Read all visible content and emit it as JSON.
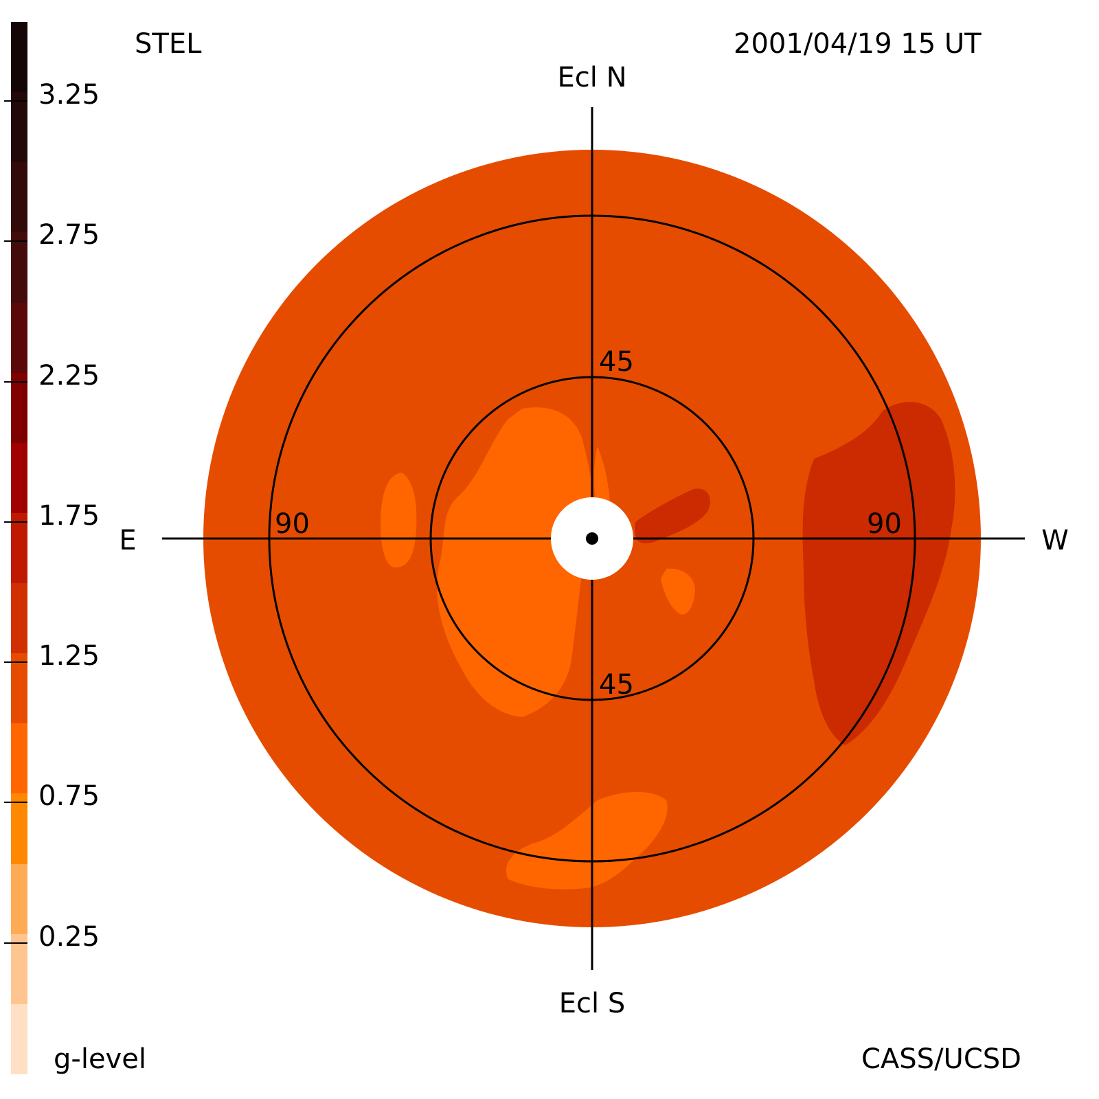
{
  "header": {
    "instrument": "STEL",
    "datetime": "2001/04/19 15 UT"
  },
  "footer": {
    "scale_label": "g-level",
    "credit": "CASS/UCSD"
  },
  "directions": {
    "north": "Ecl N",
    "south": "Ecl S",
    "east": "E",
    "west": "W"
  },
  "elongation_labels": {
    "inner_top": "45",
    "inner_bottom": "45",
    "outer_left": "90",
    "outer_right": "90"
  },
  "color_scale": {
    "tick_labels": [
      "3.25",
      "2.75",
      "2.25",
      "1.75",
      "1.25",
      "0.75",
      "0.25"
    ],
    "tick_values": [
      3.25,
      2.75,
      2.25,
      1.75,
      1.25,
      0.75,
      0.25
    ],
    "range": [
      0,
      3.5
    ],
    "bands": [
      {
        "from": 3.25,
        "to": 3.5,
        "color": "#140606"
      },
      {
        "from": 3.0,
        "to": 3.25,
        "color": "#220808"
      },
      {
        "from": 2.75,
        "to": 3.0,
        "color": "#330a0a"
      },
      {
        "from": 2.5,
        "to": 2.75,
        "color": "#440b0b"
      },
      {
        "from": 2.25,
        "to": 2.5,
        "color": "#5a0808"
      },
      {
        "from": 2.0,
        "to": 2.25,
        "color": "#800000"
      },
      {
        "from": 1.75,
        "to": 2.0,
        "color": "#a00000"
      },
      {
        "from": 1.5,
        "to": 1.75,
        "color": "#bf1a00"
      },
      {
        "from": 1.25,
        "to": 1.5,
        "color": "#d03000"
      },
      {
        "from": 1.0,
        "to": 1.25,
        "color": "#e64c00"
      },
      {
        "from": 0.75,
        "to": 1.0,
        "color": "#ff6600"
      },
      {
        "from": 0.5,
        "to": 0.75,
        "color": "#ff8800"
      },
      {
        "from": 0.25,
        "to": 0.5,
        "color": "#ffaa55"
      },
      {
        "from": 0.0,
        "to": 0.25,
        "color": "#ffc590"
      },
      {
        "from": -0.25,
        "to": 0.0,
        "color": "#ffe0c4"
      }
    ]
  },
  "map_colors": {
    "background_level": "#e64c00",
    "low_level": "#ff6600",
    "high_level": "#cc2a00",
    "occulter": "#ffffff",
    "lines": "#000000"
  }
}
